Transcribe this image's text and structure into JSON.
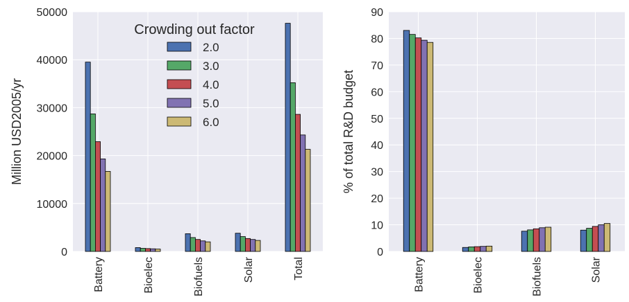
{
  "chart_data": [
    {
      "type": "bar",
      "categories": [
        "Battery",
        "Bioelec",
        "Biofuels",
        "Solar",
        "Total"
      ],
      "ylabel": "Million USD2005/yr",
      "ylim": [
        0,
        50000
      ],
      "yticks": [
        0,
        10000,
        20000,
        30000,
        40000,
        50000
      ],
      "grid": true,
      "legend": {
        "title": "Crowding out factor",
        "placement": "top-center"
      },
      "series": [
        {
          "name": "2.0",
          "values": [
            39500,
            800,
            3700,
            3800,
            47600
          ]
        },
        {
          "name": "3.0",
          "values": [
            28700,
            650,
            2900,
            3100,
            35200
          ]
        },
        {
          "name": "4.0",
          "values": [
            22900,
            600,
            2500,
            2700,
            28600
          ]
        },
        {
          "name": "5.0",
          "values": [
            19300,
            550,
            2200,
            2500,
            24300
          ]
        },
        {
          "name": "6.0",
          "values": [
            16700,
            500,
            2000,
            2300,
            21300
          ]
        }
      ]
    },
    {
      "type": "bar",
      "categories": [
        "Battery",
        "Bioelec",
        "Biofuels",
        "Solar"
      ],
      "ylabel": "% of total R&D budget",
      "ylim": [
        0,
        90
      ],
      "yticks": [
        0,
        10,
        20,
        30,
        40,
        50,
        60,
        70,
        80,
        90
      ],
      "grid": true,
      "series": [
        {
          "name": "2.0",
          "values": [
            83.0,
            1.5,
            7.6,
            8.0
          ]
        },
        {
          "name": "3.0",
          "values": [
            81.5,
            1.7,
            8.1,
            8.7
          ]
        },
        {
          "name": "4.0",
          "values": [
            80.2,
            1.8,
            8.5,
            9.4
          ]
        },
        {
          "name": "5.0",
          "values": [
            79.3,
            1.9,
            8.9,
            10.0
          ]
        },
        {
          "name": "6.0",
          "values": [
            78.5,
            2.0,
            9.1,
            10.5
          ]
        }
      ]
    }
  ],
  "colors": {
    "series": [
      "#4c72b0",
      "#55a868",
      "#c44e52",
      "#8172b2",
      "#ccb974"
    ],
    "panel": "#eaeaf2",
    "grid": "#ffffff",
    "text": "#262626"
  }
}
